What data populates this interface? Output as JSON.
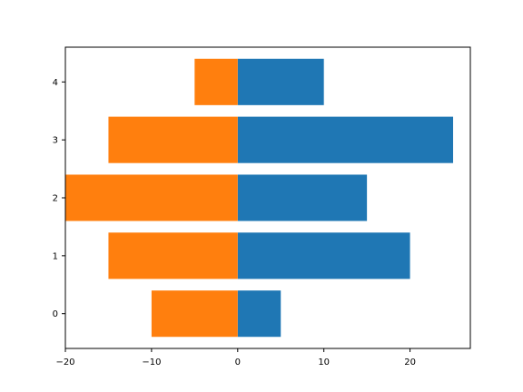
{
  "chart_data": {
    "type": "bar",
    "orientation": "horizontal",
    "categories": [
      0,
      1,
      2,
      3,
      4
    ],
    "series": [
      {
        "values": [
          5,
          20,
          15,
          25,
          10
        ],
        "color": "#1f77b4"
      },
      {
        "values": [
          -10,
          -15,
          -20,
          -15,
          -5
        ],
        "color": "#ff7f0e"
      }
    ],
    "xlim": [
      -20,
      27
    ],
    "ylim": [
      -0.6,
      4.6
    ],
    "xticks": [
      -20,
      -10,
      0,
      10,
      20
    ],
    "yticks": [
      0,
      1,
      2,
      3,
      4
    ],
    "xtick_labels": [
      "−20",
      "−10",
      "0",
      "10",
      "20"
    ],
    "ytick_labels": [
      "0",
      "1",
      "2",
      "3",
      "4"
    ],
    "bar_height": 0.8,
    "grid": false,
    "title": "",
    "xlabel": "",
    "ylabel": ""
  }
}
